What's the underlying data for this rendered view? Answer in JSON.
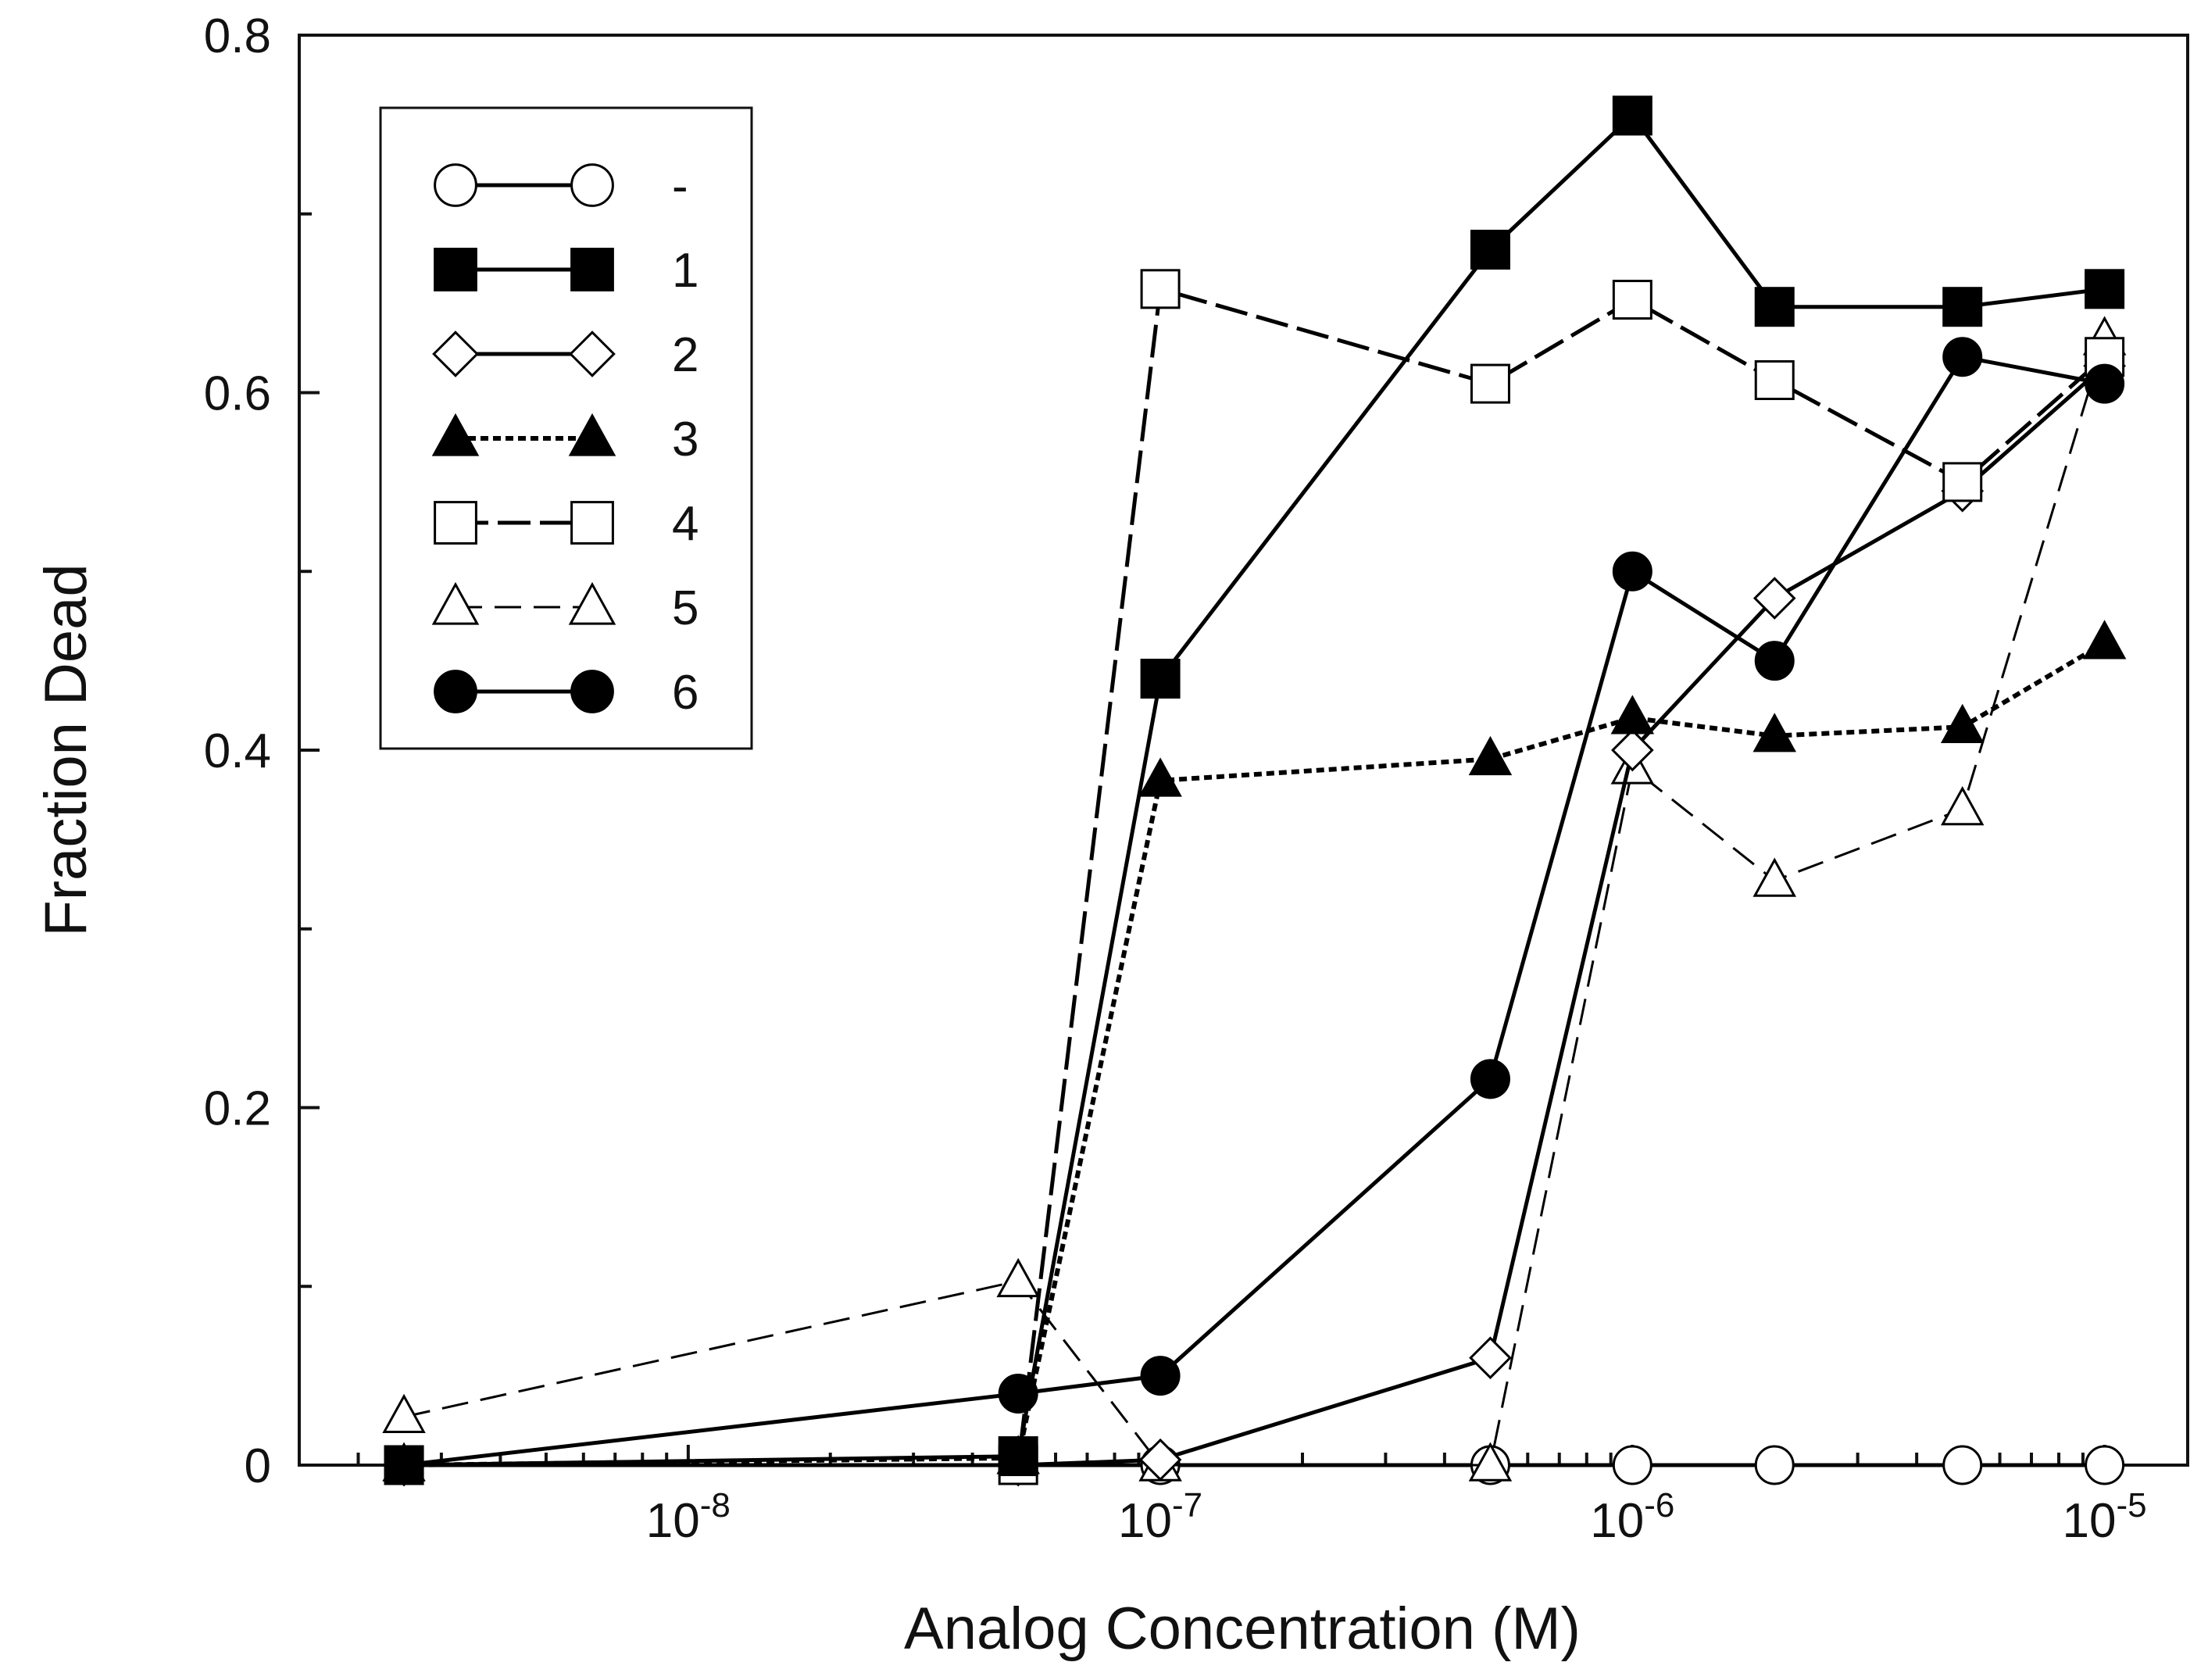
{
  "chart_data": {
    "type": "line",
    "title": "",
    "xlabel": "Analog Concentration (M)",
    "ylabel": "Fraction Dead",
    "xscale": "log",
    "xlim": [
      1.5e-09,
      1.5e-05
    ],
    "ylim": [
      0,
      0.8
    ],
    "grid": false,
    "legend_position": "top-left",
    "y_ticks": [
      {
        "value": 0,
        "label": "0"
      },
      {
        "value": 0.2,
        "label": "0.2"
      },
      {
        "value": 0.4,
        "label": "0.4"
      },
      {
        "value": 0.6,
        "label": "0.6"
      },
      {
        "value": 0.8,
        "label": "0.8"
      }
    ],
    "x_ticks": [
      {
        "value": 1e-08,
        "base": "10",
        "exp": "-8"
      },
      {
        "value": 1e-07,
        "base": "10",
        "exp": "-7"
      },
      {
        "value": 1e-06,
        "base": "10",
        "exp": "-6"
      },
      {
        "value": 1e-05,
        "base": "10",
        "exp": "-5"
      }
    ],
    "x": [
      2.5e-09,
      5e-08,
      1e-07,
      5e-07,
      1e-06,
      2e-06,
      5e-06,
      1e-05
    ],
    "series": [
      {
        "name": "-",
        "marker": "circle",
        "filled": false,
        "dash": "solid",
        "values": [
          0,
          0,
          0,
          0,
          0,
          0,
          0,
          0
        ]
      },
      {
        "name": "1",
        "marker": "square",
        "filled": true,
        "dash": "solid",
        "values": [
          0,
          0.005,
          0.44,
          0.68,
          0.755,
          0.648,
          0.648,
          0.658
        ]
      },
      {
        "name": "2",
        "marker": "diamond",
        "filled": false,
        "dash": "solid",
        "values": [
          0,
          0,
          0.003,
          0.06,
          0.4,
          0.485,
          0.545,
          0.615
        ]
      },
      {
        "name": "3",
        "marker": "triangle",
        "filled": true,
        "dash": "dotted",
        "values": [
          0,
          0.004,
          0.383,
          0.395,
          0.418,
          0.408,
          0.413,
          0.46
        ]
      },
      {
        "name": "4",
        "marker": "square",
        "filled": false,
        "dash": "longdash",
        "values": [
          0,
          0,
          0.658,
          0.605,
          0.652,
          0.607,
          0.55,
          0.62
        ]
      },
      {
        "name": "5",
        "marker": "triangle",
        "filled": false,
        "dash": "dash",
        "values": [
          0.027,
          0.103,
          0,
          0,
          0.39,
          0.327,
          0.367,
          0.63
        ]
      },
      {
        "name": "6",
        "marker": "circle",
        "filled": true,
        "dash": "solid",
        "values": [
          0,
          0.04,
          0.05,
          0.216,
          0.5,
          0.45,
          0.62,
          0.605
        ]
      }
    ]
  }
}
